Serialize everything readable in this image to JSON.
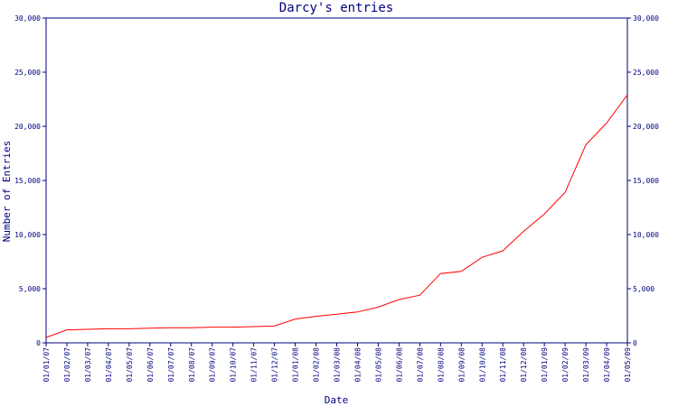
{
  "chart_data": {
    "type": "line",
    "title": "Darcy's entries",
    "xlabel": "Date",
    "ylabel": "Number of Entries",
    "x_tick_labels": [
      "01/01/07",
      "01/02/07",
      "01/03/07",
      "01/04/07",
      "01/05/07",
      "01/06/07",
      "01/07/07",
      "01/08/07",
      "01/09/07",
      "01/10/07",
      "01/11/07",
      "01/12/07",
      "01/01/08",
      "01/02/08",
      "01/03/08",
      "01/04/08",
      "01/05/08",
      "01/06/08",
      "01/07/08",
      "01/08/08",
      "01/09/08",
      "01/10/08",
      "01/11/08",
      "01/12/08",
      "01/01/09",
      "01/02/09",
      "01/03/09",
      "01/04/09",
      "01/05/09"
    ],
    "y_tick_labels": [
      "0",
      "5,000",
      "10,000",
      "15,000",
      "20,000",
      "25,000",
      "30,000"
    ],
    "y_ticks": [
      0,
      5000,
      10000,
      15000,
      20000,
      25000,
      30000
    ],
    "ylim": [
      0,
      30000
    ],
    "grid": false,
    "colors": {
      "axis": "#000080",
      "series": "#ff0000"
    },
    "series": [
      {
        "x": [
          "01/01/07",
          "01/02/07",
          "01/03/07",
          "01/04/07",
          "01/05/07",
          "01/06/07",
          "01/07/07",
          "01/08/07",
          "01/09/07",
          "01/10/07",
          "01/11/07",
          "01/12/07",
          "01/01/08",
          "01/02/08",
          "01/03/08",
          "01/04/08",
          "01/05/08",
          "01/06/08",
          "01/07/08",
          "01/08/08",
          "01/09/08",
          "01/10/08",
          "01/11/08",
          "01/12/08",
          "01/01/09",
          "01/02/09",
          "01/03/09",
          "01/04/09",
          "01/05/09"
        ],
        "values": [
          500,
          1200,
          1250,
          1300,
          1300,
          1350,
          1400,
          1400,
          1450,
          1450,
          1500,
          1550,
          2200,
          2450,
          2650,
          2850,
          3300,
          4000,
          4400,
          6400,
          6600,
          7900,
          8500,
          10300,
          11900,
          13900,
          18300,
          20300,
          22900
        ]
      }
    ]
  }
}
